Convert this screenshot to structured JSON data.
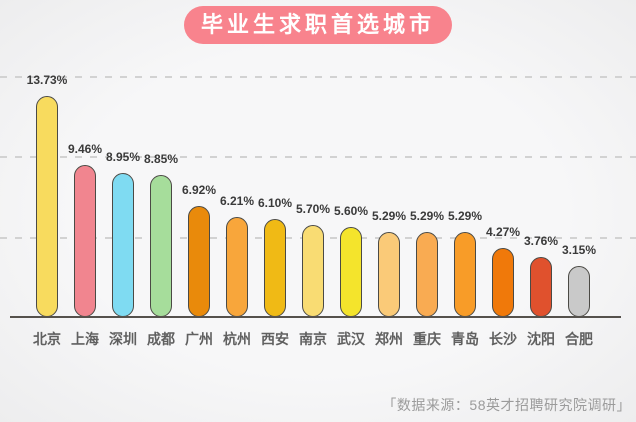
{
  "title": "毕业生求职首选城市",
  "source_note": "「数据来源：58英才招聘研究院调研」",
  "colors": {
    "background": "#F5F5F6",
    "title_bg": "#F8838D",
    "title_text": "#FFFFFF",
    "bar_outline": "#4B4A45",
    "axis": "#55514C",
    "gridline": "#D2D2D2",
    "value_label": "#3A3A3A",
    "city_label": "#606060",
    "source_text": "#9B9B9B"
  },
  "chart_data": {
    "type": "bar",
    "title": "毕业生求职首选城市",
    "categories": [
      "北京",
      "上海",
      "深圳",
      "成都",
      "广州",
      "杭州",
      "西安",
      "南京",
      "武汉",
      "郑州",
      "重庆",
      "青岛",
      "长沙",
      "沈阳",
      "合肥"
    ],
    "values": [
      13.73,
      9.46,
      8.95,
      8.85,
      6.92,
      6.21,
      6.1,
      5.7,
      5.6,
      5.29,
      5.29,
      5.29,
      4.27,
      3.76,
      3.15
    ],
    "value_labels": [
      "13.73%",
      "9.46%",
      "8.95%",
      "8.85%",
      "6.92%",
      "6.21%",
      "6.10%",
      "5.70%",
      "5.60%",
      "5.29%",
      "5.29%",
      "5.29%",
      "4.27%",
      "3.76%",
      "3.15%"
    ],
    "bar_colors": [
      "#F8DB5E",
      "#F1858F",
      "#7FDBF2",
      "#A6DD9B",
      "#E98A0B",
      "#F8A63B",
      "#F0BA15",
      "#F9DC73",
      "#F4E42C",
      "#FACA78",
      "#F9AB52",
      "#F89C28",
      "#F0790A",
      "#E0512D",
      "#C9C9C9"
    ],
    "xlabel": "",
    "ylabel": "",
    "ylim": [
      0,
      15
    ],
    "gridlines_pct": [
      5,
      10,
      15
    ],
    "grid": "dashed-horizontal",
    "legend": "none",
    "bar_shape": "capsule"
  }
}
